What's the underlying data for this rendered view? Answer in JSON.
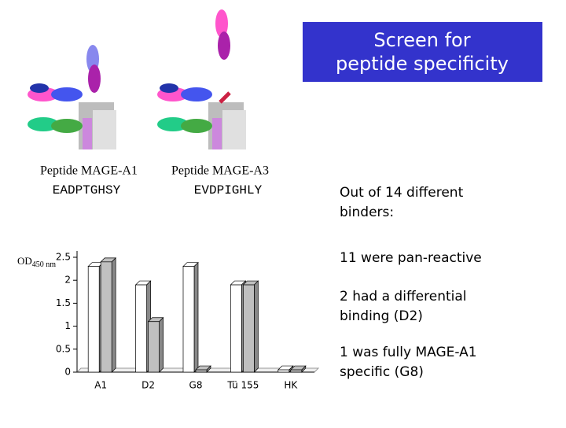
{
  "title": "Screen for peptide specificity",
  "peptides": [
    {
      "name": "Peptide MAGE-A1",
      "sequence": "EADPTGHSY"
    },
    {
      "name": "Peptide MAGE-A3",
      "sequence": "EVDPIGHLY"
    }
  ],
  "notes": [
    "Out of 14 different binders:",
    "11 were pan-reactive",
    "2 had a differential binding (D2)",
    "1 was fully MAGE-A1 specific (G8)"
  ],
  "chart_data": {
    "type": "bar3d",
    "ylabel": {
      "main": "OD",
      "sub": "450 nm"
    },
    "categories": [
      "A1",
      "D2",
      "G8",
      "Tü 155",
      "HK"
    ],
    "series": [
      {
        "color": "#ffffff",
        "values": [
          2.3,
          1.9,
          2.3,
          1.9,
          0.05
        ]
      },
      {
        "color": "#c0c0c0",
        "values": [
          2.4,
          1.1,
          0.05,
          1.9,
          0.05
        ]
      }
    ],
    "ylim": [
      0,
      2.5
    ],
    "yticks": [
      0,
      0.5,
      1,
      1.5,
      2,
      2.5
    ]
  }
}
